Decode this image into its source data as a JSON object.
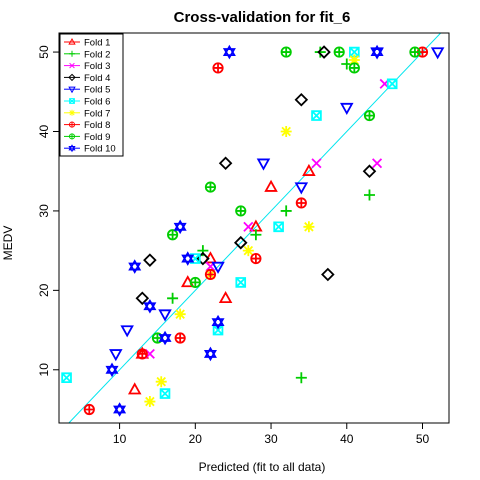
{
  "chart_data": {
    "type": "scatter",
    "title": "Cross-validation for fit_6",
    "xlabel": "Predicted (fit to all data)",
    "ylabel": "MEDV",
    "xlim": [
      2,
      53.5
    ],
    "ylim": [
      3.3,
      52.4
    ],
    "xticks": [
      10,
      20,
      30,
      40,
      50
    ],
    "yticks": [
      10,
      20,
      30,
      40,
      50
    ],
    "reference_line": {
      "slope": 1,
      "intercept": 0,
      "color": "#00e5ee"
    },
    "legend_position": "top-left",
    "series": [
      {
        "name": "Fold 1",
        "color": "#ff0000",
        "shape": "triangle-up",
        "x": [
          13,
          12,
          24,
          35,
          19,
          30,
          22,
          28
        ],
        "y": [
          12,
          7.5,
          19,
          35,
          21,
          33,
          24,
          28
        ]
      },
      {
        "name": "Fold 2",
        "color": "#00cd00",
        "shape": "plus",
        "x": [
          34,
          40,
          43,
          21,
          17,
          28,
          32,
          36.5
        ],
        "y": [
          9,
          48.5,
          32,
          25,
          19,
          27,
          30,
          50
        ]
      },
      {
        "name": "Fold 3",
        "color": "#ff00ff",
        "shape": "cross",
        "x": [
          45,
          14,
          22,
          27,
          36,
          44
        ],
        "y": [
          46,
          12,
          23,
          28,
          36,
          36
        ]
      },
      {
        "name": "Fold 4",
        "color": "#000000",
        "shape": "diamond",
        "x": [
          37.5,
          24,
          43,
          37,
          14,
          13,
          26,
          34,
          21
        ],
        "y": [
          22,
          36,
          35,
          50,
          23.8,
          19,
          26,
          44,
          24
        ]
      },
      {
        "name": "Fold 5",
        "color": "#0000ff",
        "shape": "triangle-down",
        "x": [
          9.5,
          40,
          44,
          52,
          16,
          11,
          29,
          23,
          34
        ],
        "y": [
          12,
          43,
          50,
          50,
          17,
          15,
          36,
          23,
          33
        ]
      },
      {
        "name": "Fold 6",
        "color": "#00ffff",
        "shape": "square-x",
        "x": [
          3,
          23,
          16,
          46,
          36,
          41,
          26,
          20,
          31
        ],
        "y": [
          9,
          15,
          7,
          46,
          42,
          50,
          21,
          24,
          28
        ]
      },
      {
        "name": "Fold 7",
        "color": "#ffff00",
        "shape": "asterisk",
        "x": [
          14,
          15.5,
          41,
          35,
          32,
          22,
          27,
          18
        ],
        "y": [
          6,
          8.5,
          49,
          28,
          40,
          22,
          25,
          17
        ]
      },
      {
        "name": "Fold 8",
        "color": "#ff0000",
        "shape": "circle-plus",
        "x": [
          6,
          50,
          23,
          18,
          13,
          28,
          34,
          22
        ],
        "y": [
          5,
          50,
          48,
          14,
          12,
          24,
          31,
          22
        ]
      },
      {
        "name": "Fold 9",
        "color": "#00cd00",
        "shape": "circle-plus",
        "x": [
          32,
          43,
          49,
          39,
          22,
          15,
          41,
          20,
          17,
          26
        ],
        "y": [
          50,
          42,
          50,
          50,
          33,
          14,
          48,
          21,
          27,
          30
        ]
      },
      {
        "name": "Fold 10",
        "color": "#0000ff",
        "shape": "star",
        "x": [
          10,
          12,
          18,
          9,
          24.5,
          23,
          44,
          22,
          16,
          19,
          14
        ],
        "y": [
          5,
          23,
          28,
          10,
          50,
          16,
          50,
          12,
          14,
          24,
          18
        ]
      }
    ]
  }
}
